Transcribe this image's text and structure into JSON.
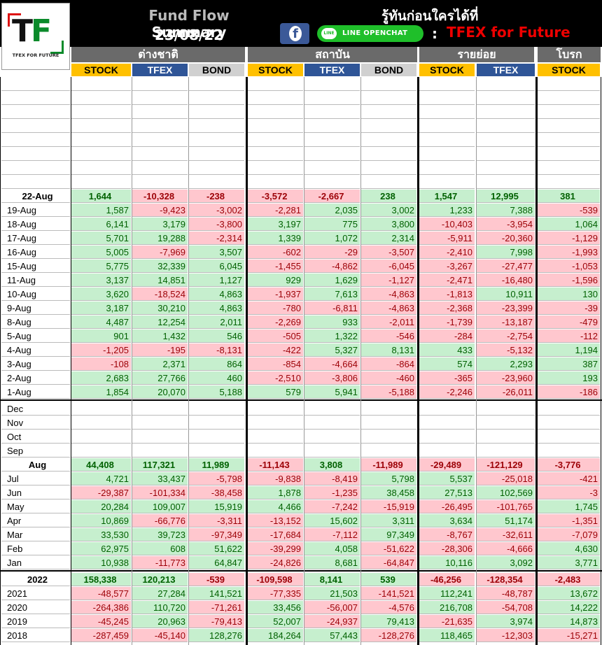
{
  "header": {
    "title_part1": "Fund Flow",
    "title_part2": "Summary",
    "date": "23/08/22",
    "slogan": "รู้ทันก่อนใครได้ที่",
    "line_label": "LINE OPENCHAT",
    "colon": ":",
    "brand": "TFEX for Future",
    "logo_text_t": "T",
    "logo_text_f": "F",
    "logo_sub": "TFEX FOR FUTURE"
  },
  "groups": [
    "ต่างชาติ",
    "สถาบัน",
    "รายย่อย",
    "โบรก"
  ],
  "subheaders": [
    "STOCK",
    "TFEX",
    "BOND",
    "STOCK",
    "TFEX",
    "BOND",
    "STOCK",
    "TFEX",
    "STOCK"
  ],
  "daily": [
    {
      "label": "22-Aug",
      "bold": true,
      "values": [
        1644,
        -10328,
        -238,
        -3572,
        -2667,
        238,
        1547,
        12995,
        381
      ],
      "text": [
        "1,644",
        "-10,328",
        "-238",
        "-3,572",
        "-2,667",
        "238",
        "1,547",
        "12,995",
        "381"
      ]
    },
    {
      "label": "19-Aug",
      "values": [
        1587,
        -9423,
        -3002,
        -2281,
        2035,
        3002,
        1233,
        7388,
        -539
      ],
      "text": [
        "1,587",
        "-9,423",
        "-3,002",
        "-2,281",
        "2,035",
        "3,002",
        "1,233",
        "7,388",
        "-539"
      ]
    },
    {
      "label": "18-Aug",
      "values": [
        6141,
        3179,
        -3800,
        3197,
        775,
        3800,
        -10403,
        -3954,
        1064
      ],
      "text": [
        "6,141",
        "3,179",
        "-3,800",
        "3,197",
        "775",
        "3,800",
        "-10,403",
        "-3,954",
        "1,064"
      ]
    },
    {
      "label": "17-Aug",
      "values": [
        5701,
        19288,
        -2314,
        1339,
        1072,
        2314,
        -5911,
        -20360,
        -1129
      ],
      "text": [
        "5,701",
        "19,288",
        "-2,314",
        "1,339",
        "1,072",
        "2,314",
        "-5,911",
        "-20,360",
        "-1,129"
      ]
    },
    {
      "label": "16-Aug",
      "values": [
        5005,
        -7969,
        3507,
        -602,
        -29,
        -3507,
        -2410,
        7998,
        -1993
      ],
      "text": [
        "5,005",
        "-7,969",
        "3,507",
        "-602",
        "-29",
        "-3,507",
        "-2,410",
        "7,998",
        "-1,993"
      ]
    },
    {
      "label": "15-Aug",
      "values": [
        5775,
        32339,
        6045,
        -1455,
        -4862,
        -6045,
        -3267,
        -27477,
        -1053
      ],
      "text": [
        "5,775",
        "32,339",
        "6,045",
        "-1,455",
        "-4,862",
        "-6,045",
        "-3,267",
        "-27,477",
        "-1,053"
      ]
    },
    {
      "label": "11-Aug",
      "values": [
        3137,
        14851,
        1127,
        929,
        1629,
        -1127,
        -2471,
        -16480,
        -1596
      ],
      "text": [
        "3,137",
        "14,851",
        "1,127",
        "929",
        "1,629",
        "-1,127",
        "-2,471",
        "-16,480",
        "-1,596"
      ]
    },
    {
      "label": "10-Aug",
      "values": [
        3620,
        -18524,
        4863,
        -1937,
        7613,
        -4863,
        -1813,
        10911,
        130
      ],
      "text": [
        "3,620",
        "-18,524",
        "4,863",
        "-1,937",
        "7,613",
        "-4,863",
        "-1,813",
        "10,911",
        "130"
      ]
    },
    {
      "label": "9-Aug",
      "values": [
        3187,
        30210,
        4863,
        -780,
        -6811,
        -4863,
        -2368,
        -23399,
        -39
      ],
      "text": [
        "3,187",
        "30,210",
        "4,863",
        "-780",
        "-6,811",
        "-4,863",
        "-2,368",
        "-23,399",
        "-39"
      ]
    },
    {
      "label": "8-Aug",
      "values": [
        4487,
        12254,
        2011,
        -2269,
        933,
        -2011,
        -1739,
        -13187,
        -479
      ],
      "text": [
        "4,487",
        "12,254",
        "2,011",
        "-2,269",
        "933",
        "-2,011",
        "-1,739",
        "-13,187",
        "-479"
      ]
    },
    {
      "label": "5-Aug",
      "values": [
        901,
        1432,
        546,
        -505,
        1322,
        -546,
        -284,
        -2754,
        -112
      ],
      "text": [
        "901",
        "1,432",
        "546",
        "-505",
        "1,322",
        "-546",
        "-284",
        "-2,754",
        "-112"
      ]
    },
    {
      "label": "4-Aug",
      "values": [
        -1205,
        -195,
        -8131,
        -422,
        5327,
        8131,
        433,
        -5132,
        1194
      ],
      "text": [
        "-1,205",
        "-195",
        "-8,131",
        "-422",
        "5,327",
        "8,131",
        "433",
        "-5,132",
        "1,194"
      ]
    },
    {
      "label": "3-Aug",
      "values": [
        -108,
        2371,
        864,
        -854,
        -4664,
        -864,
        574,
        2293,
        387
      ],
      "text": [
        "-108",
        "2,371",
        "864",
        "-854",
        "-4,664",
        "-864",
        "574",
        "2,293",
        "387"
      ]
    },
    {
      "label": "2-Aug",
      "values": [
        2683,
        27766,
        460,
        -2510,
        -3806,
        -460,
        -365,
        -23960,
        193
      ],
      "text": [
        "2,683",
        "27,766",
        "460",
        "-2,510",
        "-3,806",
        "-460",
        "-365",
        "-23,960",
        "193"
      ]
    },
    {
      "label": "1-Aug",
      "values": [
        1854,
        20070,
        5188,
        579,
        5941,
        -5188,
        -2246,
        -26011,
        -186
      ],
      "text": [
        "1,854",
        "20,070",
        "5,188",
        "579",
        "5,941",
        "-5,188",
        "-2,246",
        "-26,011",
        "-186"
      ]
    }
  ],
  "monthly_empty": [
    "Dec",
    "Nov",
    "Oct",
    "Sep"
  ],
  "monthly": [
    {
      "label": "Aug",
      "bold": true,
      "values": [
        44408,
        117321,
        11989,
        -11143,
        3808,
        -11989,
        -29489,
        -121129,
        -3776
      ],
      "text": [
        "44,408",
        "117,321",
        "11,989",
        "-11,143",
        "3,808",
        "-11,989",
        "-29,489",
        "-121,129",
        "-3,776"
      ]
    },
    {
      "label": "Jul",
      "values": [
        4721,
        33437,
        -5798,
        -9838,
        -8419,
        5798,
        5537,
        -25018,
        -421
      ],
      "text": [
        "4,721",
        "33,437",
        "-5,798",
        "-9,838",
        "-8,419",
        "5,798",
        "5,537",
        "-25,018",
        "-421"
      ]
    },
    {
      "label": "Jun",
      "values": [
        -29387,
        -101334,
        -38458,
        1878,
        -1235,
        38458,
        27513,
        102569,
        -3
      ],
      "text": [
        "-29,387",
        "-101,334",
        "-38,458",
        "1,878",
        "-1,235",
        "38,458",
        "27,513",
        "102,569",
        "-3"
      ]
    },
    {
      "label": "May",
      "values": [
        20284,
        109007,
        15919,
        4466,
        -7242,
        -15919,
        -26495,
        -101765,
        1745
      ],
      "text": [
        "20,284",
        "109,007",
        "15,919",
        "4,466",
        "-7,242",
        "-15,919",
        "-26,495",
        "-101,765",
        "1,745"
      ]
    },
    {
      "label": "Apr",
      "values": [
        10869,
        -66776,
        -3311,
        -13152,
        15602,
        3311,
        3634,
        51174,
        -1351
      ],
      "text": [
        "10,869",
        "-66,776",
        "-3,311",
        "-13,152",
        "15,602",
        "3,311",
        "3,634",
        "51,174",
        "-1,351"
      ]
    },
    {
      "label": "Mar",
      "values": [
        33530,
        39723,
        -97349,
        -17684,
        -7112,
        97349,
        -8767,
        -32611,
        -7079
      ],
      "text": [
        "33,530",
        "39,723",
        "-97,349",
        "-17,684",
        "-7,112",
        "97,349",
        "-8,767",
        "-32,611",
        "-7,079"
      ]
    },
    {
      "label": "Feb",
      "values": [
        62975,
        608,
        51622,
        -39299,
        4058,
        -51622,
        -28306,
        -4666,
        4630
      ],
      "text": [
        "62,975",
        "608",
        "51,622",
        "-39,299",
        "4,058",
        "-51,622",
        "-28,306",
        "-4,666",
        "4,630"
      ]
    },
    {
      "label": "Jan",
      "values": [
        10938,
        -11773,
        64847,
        -24826,
        8681,
        -64847,
        10116,
        3092,
        3771
      ],
      "text": [
        "10,938",
        "-11,773",
        "64,847",
        "-24,826",
        "8,681",
        "-64,847",
        "10,116",
        "3,092",
        "3,771"
      ]
    }
  ],
  "yearly": [
    {
      "label": "2022",
      "bold": true,
      "values": [
        158338,
        120213,
        -539,
        -109598,
        8141,
        539,
        -46256,
        -128354,
        -2483
      ],
      "text": [
        "158,338",
        "120,213",
        "-539",
        "-109,598",
        "8,141",
        "539",
        "-46,256",
        "-128,354",
        "-2,483"
      ]
    },
    {
      "label": "2021",
      "values": [
        -48577,
        27284,
        141521,
        -77335,
        21503,
        -141521,
        112241,
        -48787,
        13672
      ],
      "text": [
        "-48,577",
        "27,284",
        "141,521",
        "-77,335",
        "21,503",
        "-141,521",
        "112,241",
        "-48,787",
        "13,672"
      ]
    },
    {
      "label": "2020",
      "values": [
        -264386,
        110720,
        -71261,
        33456,
        -56007,
        -4576,
        216708,
        -54708,
        14222
      ],
      "text": [
        "-264,386",
        "110,720",
        "-71,261",
        "33,456",
        "-56,007",
        "-4,576",
        "216,708",
        "-54,708",
        "14,222"
      ]
    },
    {
      "label": "2019",
      "values": [
        -45245,
        20963,
        -79413,
        52007,
        -24937,
        79413,
        -21635,
        3974,
        14873
      ],
      "text": [
        "-45,245",
        "20,963",
        "-79,413",
        "52,007",
        "-24,937",
        "79,413",
        "-21,635",
        "3,974",
        "14,873"
      ]
    },
    {
      "label": "2018",
      "values": [
        -287459,
        -45140,
        128276,
        184264,
        57443,
        -128276,
        118465,
        -12303,
        -15271
      ],
      "text": [
        "-287,459",
        "-45,140",
        "128,276",
        "184,264",
        "57,443",
        "-128,276",
        "118,465",
        "-12,303",
        "-15,271"
      ]
    }
  ],
  "colors": {
    "positive_bg": "#c6efce",
    "negative_bg": "#ffc7ce",
    "stock": "#ffc000",
    "tfex": "#2f5597",
    "bond": "#d0d0d0"
  }
}
